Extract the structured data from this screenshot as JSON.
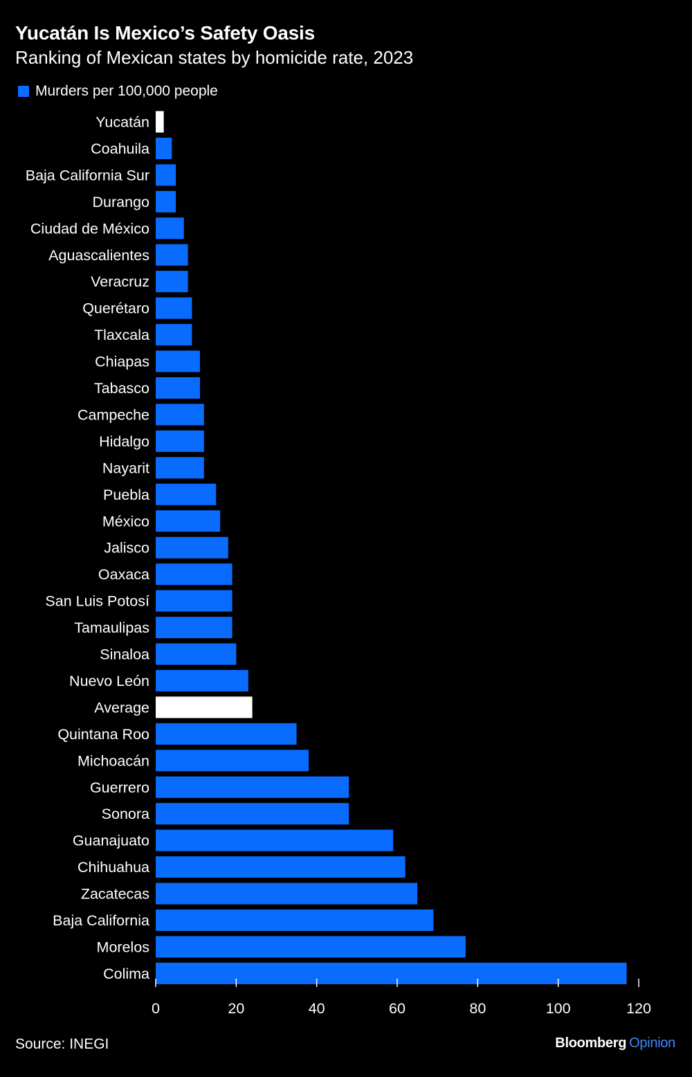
{
  "title": "Yucatán Is Mexico’s Safety Oasis",
  "subtitle": "Ranking of Mexican states by homicide rate, 2023",
  "legend": {
    "label": "Murders per 100,000 people"
  },
  "colors": {
    "background": "#000000",
    "bar": "#0a6bff",
    "highlight": "#ffffff",
    "text": "#ffffff",
    "brand_accent": "#3d8bff"
  },
  "source": "Source: INEGI",
  "brand": {
    "name": "Bloomberg",
    "suffix": "Opinion"
  },
  "chart_data": {
    "type": "bar",
    "orientation": "horizontal",
    "categories": [
      "Yucatán",
      "Coahuila",
      "Baja California Sur",
      "Durango",
      "Ciudad de México",
      "Aguascalientes",
      "Veracruz",
      "Querétaro",
      "Tlaxcala",
      "Chiapas",
      "Tabasco",
      "Campeche",
      "Hidalgo",
      "Nayarit",
      "Puebla",
      "México",
      "Jalisco",
      "Oaxaca",
      "San Luis Potosí",
      "Tamaulipas",
      "Sinaloa",
      "Nuevo León",
      "Average",
      "Quintana Roo",
      "Michoacán",
      "Guerrero",
      "Sonora",
      "Guanajuato",
      "Chihuahua",
      "Zacatecas",
      "Baja California",
      "Morelos",
      "Colima"
    ],
    "series": [
      {
        "name": "Murders per 100,000 people",
        "values": [
          2,
          4,
          5,
          5,
          7,
          8,
          8,
          9,
          9,
          11,
          11,
          12,
          12,
          12,
          15,
          16,
          18,
          19,
          19,
          19,
          20,
          23,
          24,
          35,
          38,
          48,
          48,
          59,
          62,
          65,
          69,
          77,
          117
        ]
      }
    ],
    "highlighted": [
      "Yucatán",
      "Average"
    ],
    "xlim": [
      0,
      120
    ],
    "xticks": [
      0,
      20,
      40,
      60,
      80,
      100,
      120
    ],
    "grid": false,
    "legend_position": "top-left"
  }
}
